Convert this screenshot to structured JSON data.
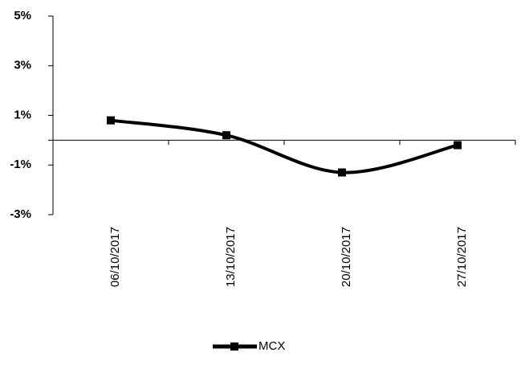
{
  "chart_data": {
    "type": "line",
    "categories": [
      "06/10/2017",
      "13/10/2017",
      "20/10/2017",
      "27/10/2017"
    ],
    "series": [
      {
        "name": "MCX",
        "values": [
          0.8,
          0.2,
          -1.3,
          -0.2
        ]
      }
    ],
    "yticks": [
      "5%",
      "3%",
      "1%",
      "-1%",
      "-3%"
    ],
    "ylim": [
      -3,
      5
    ],
    "legend": "bottom",
    "grid": false,
    "smooth": true,
    "color": "#000000"
  }
}
